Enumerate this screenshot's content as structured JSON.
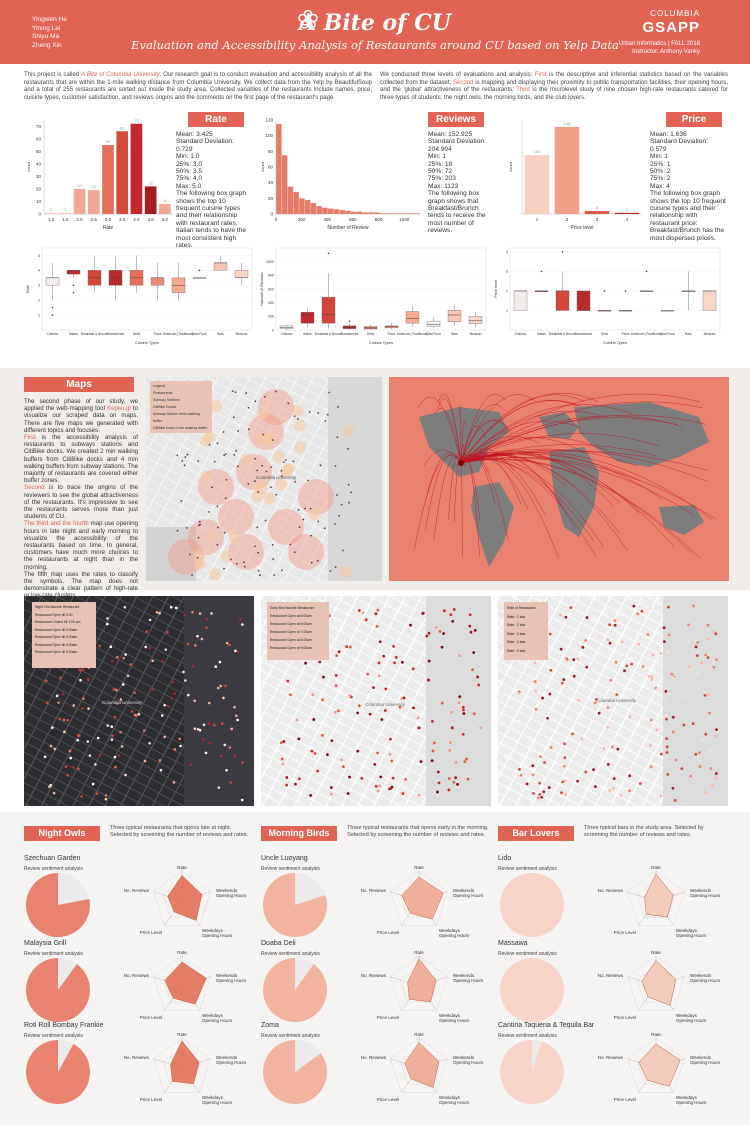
{
  "header": {
    "authors": [
      "Yingwen He",
      "Yining Lei",
      "Shiyu Ma",
      "Zheng Xin"
    ],
    "title": "A Bite of CU",
    "subtitle": "Evaluation and Accessibility Analysis of Restaurants around CU based on Yelp Data",
    "brand_top": "COLUMBIA",
    "brand": "GSAPP",
    "course": "Urban Informatics | FALL 2018",
    "instructor": "Instructor: Anthony Vanky",
    "colors": {
      "accent": "#e06353",
      "light": "#f6c7b6",
      "dark": "#b71c1c"
    }
  },
  "intro": {
    "left_1": "This project is called ",
    "left_em": "A Bite of Columbia University",
    "left_2": ". Our research goal is to conduct evaluation and accessibility analysis of all the restaurants that are within the 1-mile walking distance from Columbia University. We collect data from the Yelp by BeautifulSoup and a total of 255 restaurants are sorted out inside the study area. Collected variables of the restaurants include names, price, cuisine types, customer satisfaction, and reviews origins and the comments on the first page of the restaurant's page.",
    "right_1": "We conducted three levels of evaluations and analysis: ",
    "right_first": "First",
    "right_2": " is the descriptive and inferential statistics based on the variables collected from the dataset; ",
    "right_second": "Second",
    "right_3": " is mapping and displaying their proximity to public transportation facilities, their opening hours, and the 'global' attractiveness of the restaurants; ",
    "right_third": "Third",
    "right_4": " is the microlevel study of nine chosen high-rate restaurants catered for three types of students: the night owls, the morning birds, and the club lovers."
  },
  "rate": {
    "title": "Rate",
    "stats": [
      "Mean: 3.425",
      "Standard Deviation: 0.729",
      "Min: 1.0",
      "25%: 3.0",
      "50%: 3.5",
      "75%: 4.0",
      "Max: 5.0"
    ],
    "desc": "The following box graph shows the top 10 frequent cuisine types and their relationship with restaurant rates. Italian tends to have the most consistent high rates."
  },
  "reviews": {
    "title": "Reviews",
    "stats": [
      "Mean: 152.925",
      "Standard Deviation: 204.904",
      "Min: 1",
      "25%: 18",
      "50%: 72",
      "75%: 203",
      "Max: 1123"
    ],
    "desc": "The following box graph shows that Breakfast/Brunch tends to receive the most number of reviews."
  },
  "price": {
    "title": "Price",
    "stats": [
      "Mean: 1.636",
      "Standard Deviation: 0.579",
      "Min: 1",
      "25%: 1",
      "50%: 2",
      "75%: 2",
      "Max: 4"
    ],
    "desc": "The following box graph shows the top 10 frequent cuisine types and their relationship with restaurant price: Breakfast/Brunch has the most dispersed prices."
  },
  "chart_data": [
    {
      "type": "bar",
      "ylabel": "count",
      "xlabel": "Rate",
      "categories": [
        "1.0",
        "1.5",
        "2.0",
        "2.5",
        "3.0",
        "3.5",
        "4.0",
        "4.5",
        "5.0"
      ],
      "values": [
        1,
        1,
        20,
        19,
        55,
        66,
        72,
        22,
        8
      ],
      "ylim": [
        0,
        75
      ],
      "yticks": [
        0,
        10,
        20,
        30,
        40,
        50,
        60,
        70
      ]
    },
    {
      "type": "bar",
      "ylabel": "count",
      "xlabel": "Number of Review",
      "x_ticks": [
        "0",
        "200",
        "400",
        "600",
        "800",
        "1000"
      ],
      "values": [
        115,
        75,
        35,
        28,
        20,
        18,
        14,
        10,
        8,
        7,
        6,
        5,
        4,
        3,
        3,
        2,
        2,
        2,
        1,
        1,
        1,
        1,
        1,
        1,
        1
      ],
      "ylim": [
        0,
        120
      ],
      "yticks": [
        0,
        20,
        40,
        60,
        80,
        100,
        120
      ]
    },
    {
      "type": "bar",
      "ylabel": "count",
      "xlabel": "Price level",
      "categories": [
        "1",
        "2",
        "3",
        "4"
      ],
      "values": [
        100,
        148,
        5,
        2
      ]
    },
    {
      "type": "box",
      "ylabel": "Rate",
      "xlabel": "Cuisine Types",
      "categories": [
        "Chinese",
        "Italian",
        "Breakfast & Brunch",
        "Sandwiches",
        "Delis",
        "Pizza",
        "American (Traditional)",
        "Fast Food",
        "Bars",
        "Mexican"
      ]
    },
    {
      "type": "box",
      "ylabel": "Number of Reviews",
      "xlabel": "Cuisine Types",
      "categories": [
        "Chinese",
        "Italian",
        "Breakfast & Brunch",
        "Sandwiches",
        "Delis",
        "Pizza",
        "American (Traditional)",
        "Fast Food",
        "Bars",
        "Mexican"
      ]
    },
    {
      "type": "box",
      "ylabel": "Price level",
      "xlabel": "Cuisine Types",
      "categories": [
        "Chinese",
        "Italian",
        "Breakfast & Brunch",
        "Sandwiches",
        "Delis",
        "Pizza",
        "American (Traditional)",
        "Fast Food",
        "Bars",
        "Mexican"
      ]
    }
  ],
  "maps": {
    "title": "Maps",
    "p1_a": "The second phase of our study, we applied the web-mapping tool ",
    "p1_link": "Kepler.gl",
    "p1_b": " to visualize our scraped data on maps. There are five maps we generated with different topics and focuses:",
    "first": "First",
    "p2": " is the accessibility analysis of restaurants to subways stations and CitiBike docks. We created 2 min walking buffers from CitiBike docks and 4 min walking buffers from subway stations. The majority of restaurants are covered either buffer zones.",
    "second": "Second",
    "p3": " is to trace the origins of the reviewers to see the global attractiveness of the restaurants. It's impressive to see the restaurants serves more than just students of CU.",
    "third": "The third and the fourth",
    "p4": " map use opening hours in late night and early morning to visualize the accessibility of the restaurants based on time. In general, customers have much more choices to the restaurants at night than in the morning.",
    "p5": "The fifth map uses the rates to classify the symbols. The map does not demonstrate a clear pattern of high-rate or low-rate clusters.",
    "map_label": "Columbia University",
    "legend1_title": "Legend",
    "legend1": [
      "Restaurants",
      "Subway Stations",
      "CitiBike Docks",
      "Subway Station 4min walking buffer",
      "CitiBike Dock 2 min walking buffer"
    ],
    "legend3_title": "Night Owl favorite Restaurant",
    "legend3": [
      "Restaurant Open till 0:00",
      "Restaurant Closed till 1:00 am",
      "Restaurant Open till 2:00am",
      "Restaurant Open till 3:00am",
      "Restaurant Open till 4:00am",
      "Restaurant Open till 5:00am"
    ],
    "legend4_title": "Early Bird favorite Restaurant",
    "legend4": [
      "Restaurant Open at 5:00am",
      "Restaurant Open at 6:00am",
      "Restaurant Open at 7:00am",
      "Restaurant Open at 8:00am",
      "Restaurant Open at 9:00am"
    ],
    "legend5_title": "Rate of Restaurant",
    "legend5": [
      "Rate : 1 star",
      "Rate : 2 star",
      "Rate : 3 star",
      "Rate : 4 star",
      "Rate : 5 star"
    ]
  },
  "groups": [
    {
      "title": "Night Owls",
      "desc": "Three typical restaurants that opens late at night. Selected by screening the number of reviews and rates.",
      "restaurants": [
        {
          "name": "Szechuan Garden",
          "sentiment": 0.78
        },
        {
          "name": "Malaysia Grill",
          "sentiment": 0.9
        },
        {
          "name": "Roti Roll Bombay Frankie",
          "sentiment": 0.92
        }
      ]
    },
    {
      "title": "Morning Birds",
      "desc": "Three typical restaurants that opens early in the morning. Selected by screening the number of reviews and rates.",
      "restaurants": [
        {
          "name": "Uncle Luoyang",
          "sentiment": 0.8
        },
        {
          "name": "Doaba Deli",
          "sentiment": 0.9
        },
        {
          "name": "Zoma",
          "sentiment": 0.85
        }
      ]
    },
    {
      "title": "Bar Lovers",
      "desc": "Three typical bars in the study area. Selected by screening the number of reviews and rates.",
      "restaurants": [
        {
          "name": "Lido",
          "sentiment": 1.0
        },
        {
          "name": "Massawa",
          "sentiment": 1.0
        },
        {
          "name": "Cantina Taqueria & Tequila Bar",
          "sentiment": 0.95
        }
      ]
    }
  ],
  "sentiment_label": "Review sentiment analysis",
  "radar_axes": [
    "Rate",
    "Weekends Opening Hours",
    "Weekdays Opening Hours",
    "Price Level",
    "No. Reviews"
  ]
}
